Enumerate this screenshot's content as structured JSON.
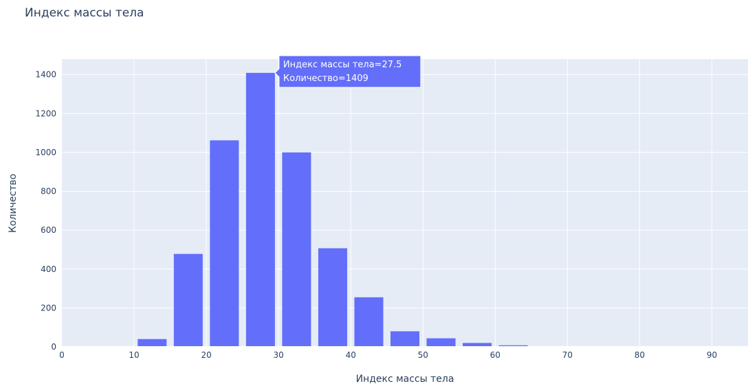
{
  "chart_data": {
    "type": "bar",
    "title": "Индекс массы тела",
    "xlabel": "Индекс массы тела",
    "ylabel": "Количество",
    "xlim": [
      0,
      95
    ],
    "ylim": [
      0,
      1480
    ],
    "x_ticks": [
      0,
      10,
      20,
      30,
      40,
      50,
      60,
      70,
      80,
      90
    ],
    "y_ticks": [
      0,
      200,
      400,
      600,
      800,
      1000,
      1200,
      1400
    ],
    "bin_width": 5,
    "bin_centers": [
      12.5,
      17.5,
      22.5,
      27.5,
      32.5,
      37.5,
      42.5,
      47.5,
      52.5,
      57.5,
      62.5,
      67.5,
      72.5,
      77.5,
      82.5,
      87.5
    ],
    "values": [
      40,
      478,
      1062,
      1409,
      1000,
      507,
      255,
      80,
      44,
      20,
      8,
      3,
      2,
      1,
      1,
      1
    ],
    "bar_color": "#636efa",
    "plot_bgcolor": "#e5ecf6",
    "grid": true
  },
  "tooltip": {
    "line1": "Индекс массы тела=27.5",
    "line2": "Количество=1409",
    "bin_center": 27.5,
    "value": 1409
  }
}
